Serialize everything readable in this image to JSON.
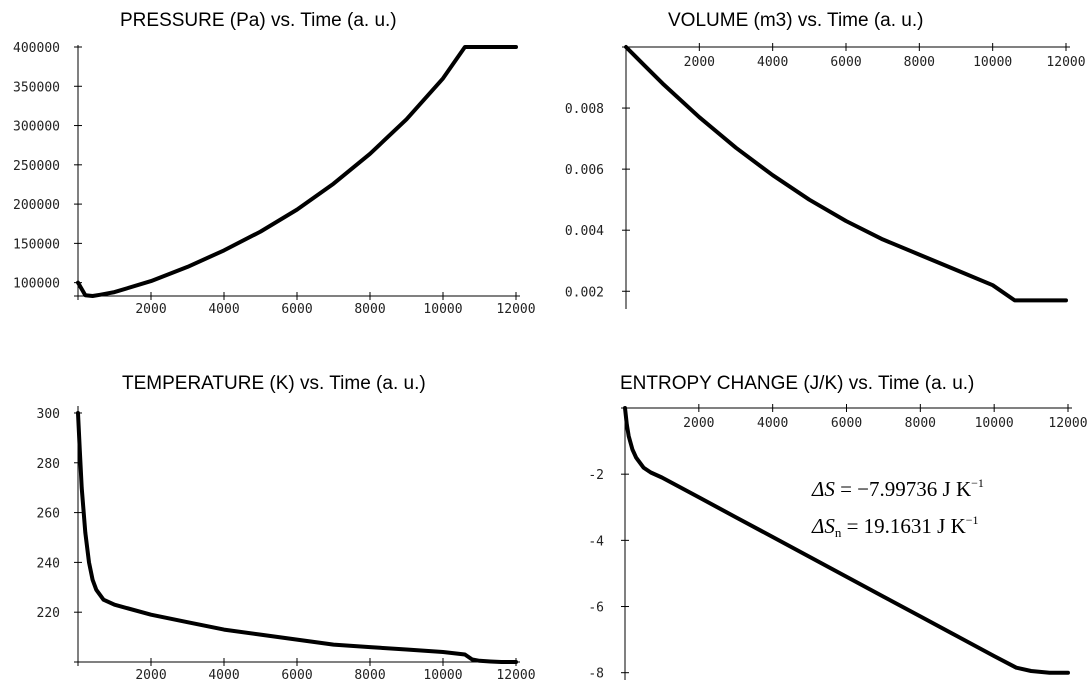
{
  "chart_data": [
    {
      "type": "line",
      "title": "PRESSURE (Pa) vs. Time (a. u.)",
      "xlim": [
        0,
        12000
      ],
      "ylim": [
        83000,
        400000
      ],
      "x_origin_value": 83000,
      "x_axis_at_bottom": true,
      "xticks": [
        2000,
        4000,
        6000,
        8000,
        10000,
        12000
      ],
      "xtick_labels": [
        "2000",
        "4000",
        "6000",
        "8000",
        "10000",
        "12000"
      ],
      "yticks": [
        100000,
        150000,
        200000,
        250000,
        300000,
        350000,
        400000
      ],
      "ytick_labels": [
        "100000",
        "150000",
        "200000",
        "250000",
        "300000",
        "350000",
        "400000"
      ],
      "series": [
        {
          "x": [
            0,
            200,
            400,
            600,
            1000,
            2000,
            3000,
            4000,
            5000,
            6000,
            7000,
            8000,
            9000,
            10000,
            10600,
            11000,
            12000
          ],
          "values": [
            100000,
            84000,
            83000,
            84500,
            88000,
            102000,
            120000,
            141000,
            165000,
            193000,
            226000,
            264000,
            308000,
            360000,
            400000,
            400000,
            400000
          ]
        }
      ]
    },
    {
      "type": "line",
      "title": "VOLUME (m3) vs. Time (a. u.)",
      "xlim": [
        0,
        12000
      ],
      "ylim": [
        0.00155,
        0.01
      ],
      "x_axis_at_top": true,
      "xticks": [
        2000,
        4000,
        6000,
        8000,
        10000,
        12000
      ],
      "xtick_labels": [
        "2000",
        "4000",
        "6000",
        "8000",
        "10000",
        "12000"
      ],
      "yticks": [
        0.002,
        0.004,
        0.006,
        0.008
      ],
      "ytick_labels": [
        "0.002",
        "0.004",
        "0.006",
        "0.008"
      ],
      "series": [
        {
          "x": [
            0,
            500,
            1000,
            2000,
            3000,
            4000,
            5000,
            6000,
            7000,
            8000,
            9000,
            10000,
            10600,
            11000,
            12000
          ],
          "values": [
            0.01,
            0.0094,
            0.0088,
            0.0077,
            0.0067,
            0.0058,
            0.005,
            0.0043,
            0.0037,
            0.0032,
            0.0027,
            0.0022,
            0.0017,
            0.0017,
            0.0017
          ]
        }
      ]
    },
    {
      "type": "line",
      "title": "TEMPERATURE (K) vs. Time (a. u.)",
      "xlim": [
        0,
        12000
      ],
      "ylim": [
        200,
        302
      ],
      "x_axis_at_bottom": true,
      "xticks": [
        2000,
        4000,
        6000,
        8000,
        10000,
        12000
      ],
      "xtick_labels": [
        "2000",
        "4000",
        "6000",
        "8000",
        "10000",
        "12000"
      ],
      "yticks": [
        220,
        240,
        260,
        280,
        300
      ],
      "ytick_labels": [
        "220",
        "240",
        "260",
        "280",
        "300"
      ],
      "series": [
        {
          "x": [
            0,
            50,
            100,
            200,
            300,
            400,
            500,
            700,
            1000,
            2000,
            3000,
            4000,
            5000,
            6000,
            7000,
            8000,
            9000,
            10000,
            10600,
            10800,
            11000,
            11300,
            11600,
            12000
          ],
          "values": [
            300,
            285,
            270,
            252,
            240,
            233,
            229,
            225,
            223,
            219,
            216,
            213,
            211,
            209,
            207,
            206,
            205,
            204,
            203,
            201,
            200.5,
            200.2,
            200,
            200
          ]
        }
      ]
    },
    {
      "type": "line",
      "title": "ENTROPY CHANGE (J/K) vs. Time (a. u.)",
      "xlim": [
        0,
        12000
      ],
      "ylim": [
        -8.1,
        0
      ],
      "x_axis_at_top": true,
      "xticks": [
        2000,
        4000,
        6000,
        8000,
        10000,
        12000
      ],
      "xtick_labels": [
        "2000",
        "4000",
        "6000",
        "8000",
        "10000",
        "12000"
      ],
      "yticks": [
        -2,
        -4,
        -6,
        -8
      ],
      "ytick_labels": [
        "-2",
        "-4",
        "-6",
        "-8"
      ],
      "series": [
        {
          "x": [
            0,
            50,
            100,
            200,
            300,
            500,
            700,
            1000,
            2000,
            3000,
            4000,
            5000,
            6000,
            7000,
            8000,
            9000,
            10000,
            10600,
            11000,
            11500,
            12000
          ],
          "values": [
            0,
            -0.5,
            -0.85,
            -1.25,
            -1.5,
            -1.8,
            -1.95,
            -2.1,
            -2.7,
            -3.3,
            -3.9,
            -4.5,
            -5.1,
            -5.7,
            -6.3,
            -6.9,
            -7.5,
            -7.85,
            -7.95,
            -8.0,
            -8.0
          ]
        }
      ],
      "annotations": [
        {
          "symbol": "ΔS",
          "sub": "",
          "equals": " = −7.99736 ",
          "unit": "J K",
          "exp": "−1"
        },
        {
          "symbol": "ΔS",
          "sub": "n",
          "equals": " = 19.1631 ",
          "unit": "J K",
          "exp": "−1"
        }
      ]
    }
  ]
}
